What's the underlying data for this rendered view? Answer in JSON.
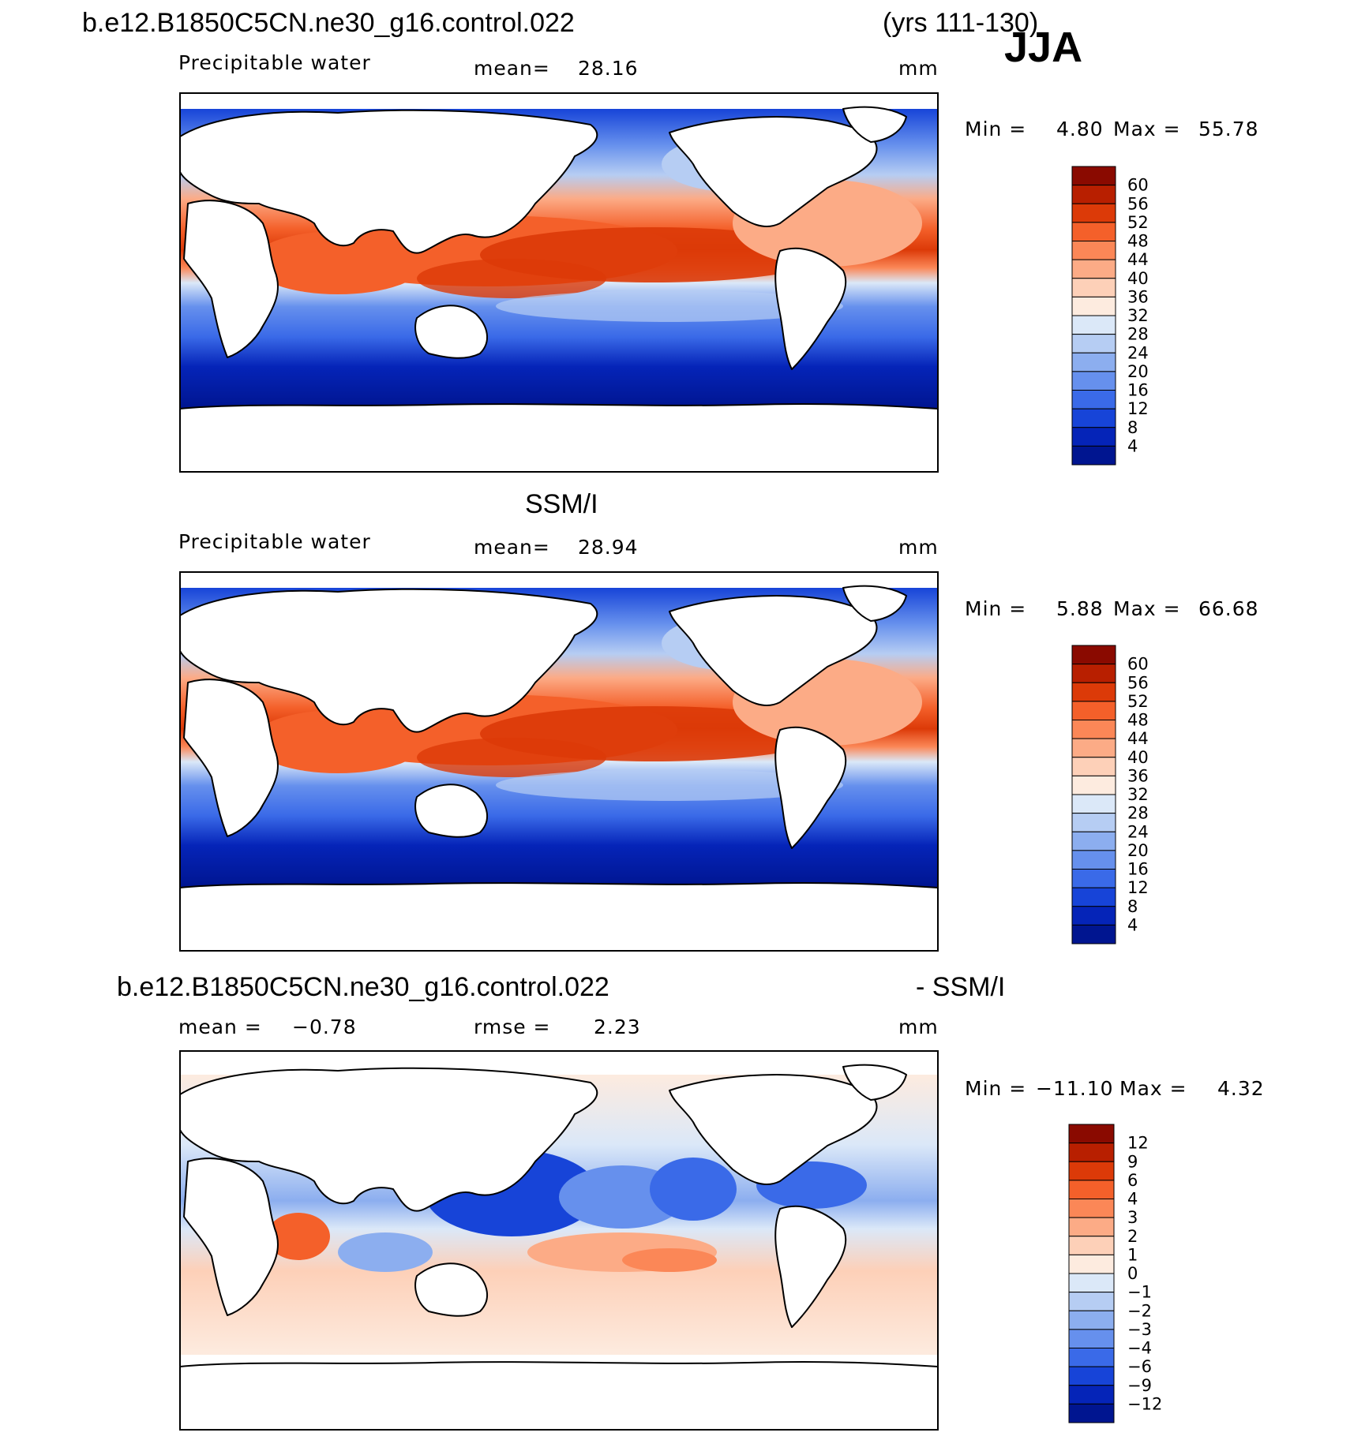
{
  "header": {
    "case_name": "b.e12.B1850C5CN.ne30_g16.control.022",
    "years": "(yrs 111-130)",
    "season": "JJA"
  },
  "chart_data": [
    {
      "type": "heatmap",
      "panel": "model",
      "field": "Precipitable water",
      "mean_label": "mean=",
      "mean": "28.16",
      "units": "mm",
      "min_label": "Min =",
      "min": "4.80",
      "max_label": "Max =",
      "max": "55.78",
      "colorbar": {
        "levels": [
          "60",
          "56",
          "52",
          "48",
          "44",
          "40",
          "36",
          "32",
          "28",
          "24",
          "20",
          "16",
          "12",
          "8",
          "4"
        ],
        "colors": [
          "#8a0a00",
          "#b81f00",
          "#dc3a08",
          "#f4602a",
          "#fb8757",
          "#fcab86",
          "#fdd0b8",
          "#fdebdf",
          "#dbe8f8",
          "#b6cdf3",
          "#8caeef",
          "#6690ed",
          "#3a6ae8",
          "#1744d8",
          "#0524b8",
          "#001590"
        ]
      }
    },
    {
      "type": "heatmap",
      "panel": "observation",
      "title": "SSM/I",
      "field": "Precipitable water",
      "mean_label": "mean=",
      "mean": "28.94",
      "units": "mm",
      "min_label": "Min =",
      "min": "5.88",
      "max_label": "Max =",
      "max": "66.68",
      "colorbar": {
        "levels": [
          "60",
          "56",
          "52",
          "48",
          "44",
          "40",
          "36",
          "32",
          "28",
          "24",
          "20",
          "16",
          "12",
          "8",
          "4"
        ],
        "colors": [
          "#8a0a00",
          "#b81f00",
          "#dc3a08",
          "#f4602a",
          "#fb8757",
          "#fcab86",
          "#fdd0b8",
          "#fdebdf",
          "#dbe8f8",
          "#b6cdf3",
          "#8caeef",
          "#6690ed",
          "#3a6ae8",
          "#1744d8",
          "#0524b8",
          "#001590"
        ]
      }
    },
    {
      "type": "heatmap",
      "panel": "difference",
      "title_left": "b.e12.B1850C5CN.ne30_g16.control.022",
      "title_right": "- SSM/I",
      "mean_label": "mean =",
      "mean": "−0.78",
      "rmse_label": "rmse =",
      "rmse": "2.23",
      "units": "mm",
      "min_label": "Min =",
      "min": "−11.10",
      "max_label": "Max =",
      "max": "4.32",
      "colorbar": {
        "levels": [
          "12",
          "9",
          "6",
          "4",
          "3",
          "2",
          "1",
          "0",
          "−1",
          "−2",
          "−3",
          "−4",
          "−6",
          "−9",
          "−12"
        ],
        "colors": [
          "#8a0a00",
          "#b81f00",
          "#dc3a08",
          "#f4602a",
          "#fb8757",
          "#fcab86",
          "#fdd0b8",
          "#fdebdf",
          "#dbe8f8",
          "#b6cdf3",
          "#8caeef",
          "#6690ed",
          "#3a6ae8",
          "#1744d8",
          "#0524b8",
          "#001590"
        ]
      }
    }
  ]
}
